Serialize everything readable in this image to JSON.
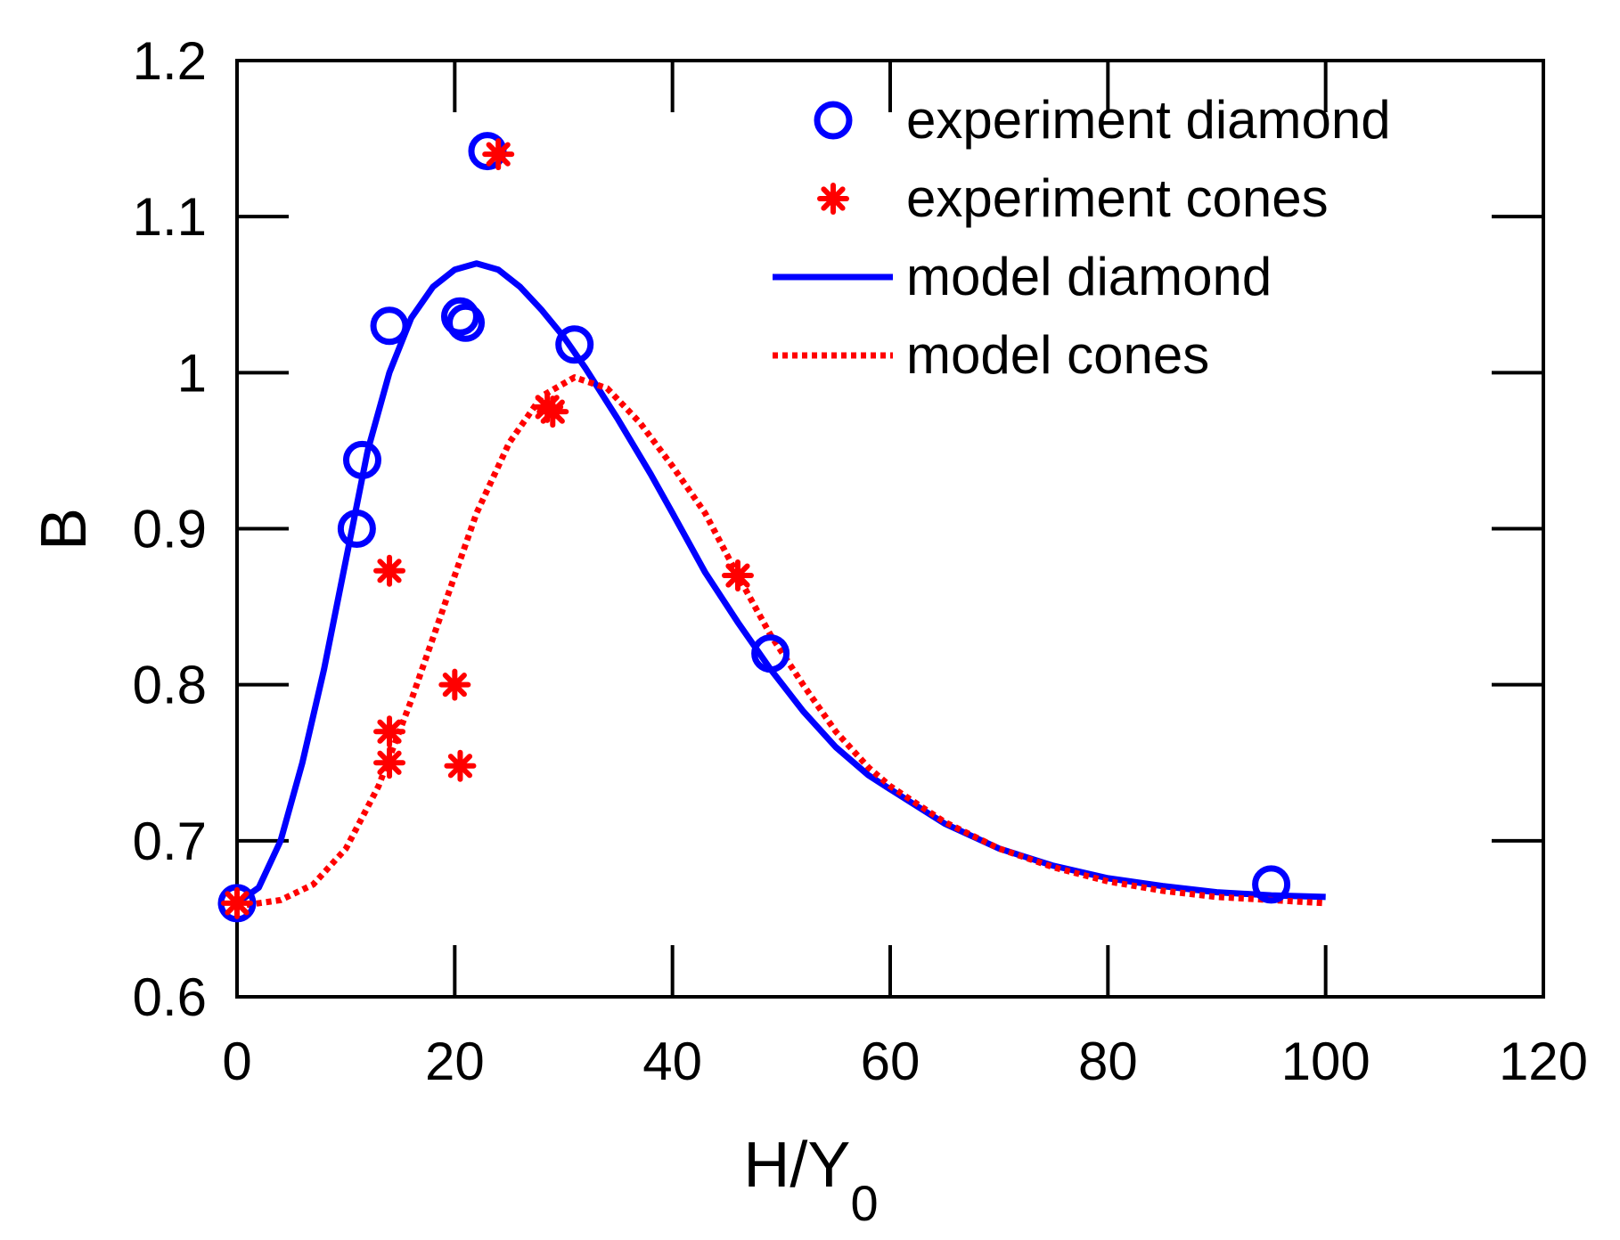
{
  "chart_data": {
    "type": "scatter",
    "xlabel": "H/Y",
    "xlabel_sub": "0",
    "ylabel": "B",
    "xlim": [
      0,
      120
    ],
    "ylim": [
      0.6,
      1.2
    ],
    "xticks": [
      0,
      20,
      40,
      60,
      80,
      100,
      120
    ],
    "yticks": [
      0.6,
      0.7,
      0.8,
      0.9,
      1.0,
      1.1,
      1.2
    ],
    "xtick_labels": [
      "0",
      "20",
      "40",
      "60",
      "80",
      "100",
      "120"
    ],
    "ytick_labels": [
      "0.6",
      "0.7",
      "0.8",
      "0.9",
      "1",
      "1.1",
      "1.2"
    ],
    "grid": false,
    "legend_position": "top-right",
    "series": [
      {
        "name": "experiment diamond",
        "kind": "scatter",
        "marker": "circle",
        "color": "#0000ff",
        "points": [
          [
            0,
            0.66
          ],
          [
            11,
            0.9
          ],
          [
            11.5,
            0.944
          ],
          [
            14,
            1.03
          ],
          [
            20.5,
            1.036
          ],
          [
            21,
            1.032
          ],
          [
            23,
            1.142
          ],
          [
            31,
            1.018
          ],
          [
            49,
            0.82
          ],
          [
            95,
            0.672
          ]
        ]
      },
      {
        "name": "experiment cones",
        "kind": "scatter",
        "marker": "asterisk",
        "color": "#ff0000",
        "points": [
          [
            0,
            0.66
          ],
          [
            14,
            0.873
          ],
          [
            14,
            0.77
          ],
          [
            14,
            0.75
          ],
          [
            20,
            0.8
          ],
          [
            20.5,
            0.748
          ],
          [
            24,
            1.14
          ],
          [
            28.5,
            0.978
          ],
          [
            29,
            0.975
          ],
          [
            46,
            0.87
          ]
        ]
      },
      {
        "name": "model diamond",
        "kind": "line",
        "style": "solid",
        "color": "#0000ff",
        "points": [
          [
            0,
            0.66
          ],
          [
            2,
            0.67
          ],
          [
            4,
            0.7
          ],
          [
            6,
            0.75
          ],
          [
            8,
            0.81
          ],
          [
            10,
            0.88
          ],
          [
            12,
            0.95
          ],
          [
            14,
            1.0
          ],
          [
            16,
            1.035
          ],
          [
            18,
            1.055
          ],
          [
            20,
            1.066
          ],
          [
            22,
            1.07
          ],
          [
            24,
            1.066
          ],
          [
            26,
            1.055
          ],
          [
            28,
            1.04
          ],
          [
            30,
            1.023
          ],
          [
            32,
            1.003
          ],
          [
            35,
            0.97
          ],
          [
            38,
            0.935
          ],
          [
            40,
            0.91
          ],
          [
            43,
            0.872
          ],
          [
            46,
            0.84
          ],
          [
            49,
            0.81
          ],
          [
            52,
            0.783
          ],
          [
            55,
            0.76
          ],
          [
            58,
            0.742
          ],
          [
            60,
            0.733
          ],
          [
            65,
            0.711
          ],
          [
            70,
            0.695
          ],
          [
            75,
            0.684
          ],
          [
            80,
            0.676
          ],
          [
            85,
            0.671
          ],
          [
            90,
            0.667
          ],
          [
            95,
            0.665
          ],
          [
            100,
            0.664
          ]
        ]
      },
      {
        "name": "model cones",
        "kind": "line",
        "style": "dotted",
        "color": "#ff0000",
        "points": [
          [
            0,
            0.658
          ],
          [
            4,
            0.662
          ],
          [
            7,
            0.672
          ],
          [
            10,
            0.695
          ],
          [
            13,
            0.735
          ],
          [
            16,
            0.79
          ],
          [
            19,
            0.85
          ],
          [
            22,
            0.91
          ],
          [
            25,
            0.955
          ],
          [
            28,
            0.985
          ],
          [
            31,
            0.997
          ],
          [
            34,
            0.99
          ],
          [
            37,
            0.968
          ],
          [
            40,
            0.94
          ],
          [
            43,
            0.91
          ],
          [
            46,
            0.87
          ],
          [
            49,
            0.832
          ],
          [
            52,
            0.8
          ],
          [
            55,
            0.77
          ],
          [
            58,
            0.747
          ],
          [
            60,
            0.735
          ],
          [
            65,
            0.712
          ],
          [
            70,
            0.695
          ],
          [
            75,
            0.683
          ],
          [
            80,
            0.674
          ],
          [
            85,
            0.668
          ],
          [
            90,
            0.664
          ],
          [
            95,
            0.662
          ],
          [
            100,
            0.66
          ]
        ]
      }
    ]
  }
}
